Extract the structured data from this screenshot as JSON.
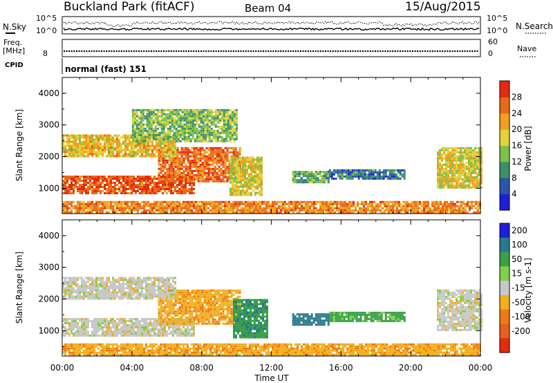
{
  "header": {
    "station": "Buckland Park (fitACF)",
    "beam": "Beam 04",
    "date": "15/Aug/2015"
  },
  "panels": {
    "nsky": {
      "left_label": "N.Sky",
      "right_label": "N.Search",
      "ticks": [
        "10^5",
        "10^0"
      ]
    },
    "freq": {
      "left_label_1": "Freq.",
      "left_label_2": "[MHz]",
      "left_tick": "8",
      "right_label": "Nave",
      "right_ticks": [
        "60",
        "0"
      ]
    },
    "cpid": {
      "label": "CPID",
      "value": "normal (fast) 151"
    }
  },
  "x_axis": {
    "label": "Time UT",
    "ticks": [
      "00:00",
      "04:00",
      "08:00",
      "12:00",
      "16:00",
      "20:00",
      "00:00"
    ]
  },
  "chart_data": [
    {
      "type": "heatmap",
      "name": "power",
      "x": {
        "label": "Time UT",
        "range": [
          "00:00",
          "24:00"
        ],
        "unit": "hours"
      },
      "y": {
        "label": "Slant Range [km]",
        "ticks": [
          1000,
          2000,
          3000,
          4000
        ],
        "range": [
          200,
          4500
        ]
      },
      "colorbar": {
        "label": "Power [dB]",
        "ticks": [
          4,
          8,
          12,
          16,
          20,
          24,
          28
        ],
        "colors": [
          "#1f1fd6",
          "#2a55a8",
          "#3c8f6a",
          "#7dc04a",
          "#e3d23a",
          "#f0a020",
          "#e86a18",
          "#e62a10"
        ]
      },
      "regions": [
        {
          "t": [
            0.0,
            7.6
          ],
          "range": [
            850,
            1400
          ],
          "value": 28
        },
        {
          "t": [
            5.5,
            10.2
          ],
          "range": [
            1200,
            2300
          ],
          "value": 26
        },
        {
          "t": [
            0.0,
            6.5
          ],
          "range": [
            2000,
            2700
          ],
          "value": 20
        },
        {
          "t": [
            4.0,
            10.0
          ],
          "range": [
            2500,
            3500
          ],
          "value": 14
        },
        {
          "t": [
            9.6,
            11.5
          ],
          "range": [
            800,
            2000
          ],
          "value": 18
        },
        {
          "t": [
            13.2,
            15.3
          ],
          "range": [
            1200,
            1550
          ],
          "value": 12
        },
        {
          "t": [
            15.3,
            19.6
          ],
          "range": [
            1300,
            1600
          ],
          "value": 8
        },
        {
          "t": [
            21.5,
            24.0
          ],
          "range": [
            1000,
            2300
          ],
          "value": 18
        },
        {
          "t": [
            0.0,
            24.0
          ],
          "range": [
            250,
            600
          ],
          "value": 24
        }
      ]
    },
    {
      "type": "heatmap",
      "name": "velocity",
      "x": {
        "label": "Time UT",
        "range": [
          "00:00",
          "24:00"
        ],
        "unit": "hours"
      },
      "y": {
        "label": "Slant Range [km]",
        "ticks": [
          1000,
          2000,
          3000,
          4000
        ],
        "range": [
          200,
          4500
        ]
      },
      "colorbar": {
        "label": "Velocity [m s-1]",
        "ticks": [
          200,
          100,
          50,
          15,
          -15,
          -50,
          -100,
          -200
        ],
        "colors": [
          "#1f1fd6",
          "#2a7a8a",
          "#3aa04a",
          "#7fd04a",
          "#c8c8c8",
          "#f0b020",
          "#f07a18",
          "#e86020",
          "#e62a10"
        ]
      },
      "regions": [
        {
          "t": [
            0.0,
            7.6
          ],
          "range": [
            850,
            1400
          ],
          "value": 0
        },
        {
          "t": [
            5.5,
            10.2
          ],
          "range": [
            1200,
            2300
          ],
          "value": -40
        },
        {
          "t": [
            0.0,
            6.5
          ],
          "range": [
            2000,
            2700
          ],
          "value": 0
        },
        {
          "t": [
            9.8,
            11.8
          ],
          "range": [
            800,
            2000
          ],
          "value": 90
        },
        {
          "t": [
            13.2,
            15.3
          ],
          "range": [
            1200,
            1550
          ],
          "value": 180
        },
        {
          "t": [
            15.3,
            19.6
          ],
          "range": [
            1300,
            1600
          ],
          "value": 60
        },
        {
          "t": [
            21.5,
            24.0
          ],
          "range": [
            1000,
            2300
          ],
          "value": 0
        },
        {
          "t": [
            0.0,
            24.0
          ],
          "range": [
            250,
            600
          ],
          "value": -40
        }
      ]
    }
  ]
}
